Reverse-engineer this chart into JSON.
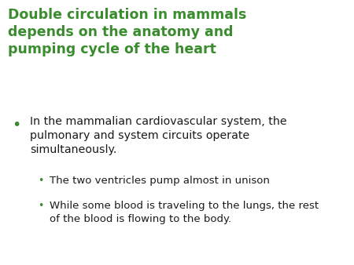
{
  "background_color": "#ffffff",
  "title_lines": [
    "Double circulation in mammals",
    "depends on the anatomy and",
    "pumping cycle of the heart"
  ],
  "title_color": "#3a8c2f",
  "title_fontsize": 12.5,
  "body_color": "#1a1a1a",
  "body_fontsize": 10.2,
  "sub_fontsize": 9.5,
  "bullet_dot_color": "#3a8c2f",
  "sub_dot_color": "#3a8c2f",
  "bullet1_text": "In the mammalian cardiovascular system, the\npulmonary and system circuits operate\nsimultaneously.",
  "sub1_text": "The two ventricles pump almost in unison",
  "sub2_text": "While some blood is traveling to the lungs, the rest\nof the blood is flowing to the body."
}
